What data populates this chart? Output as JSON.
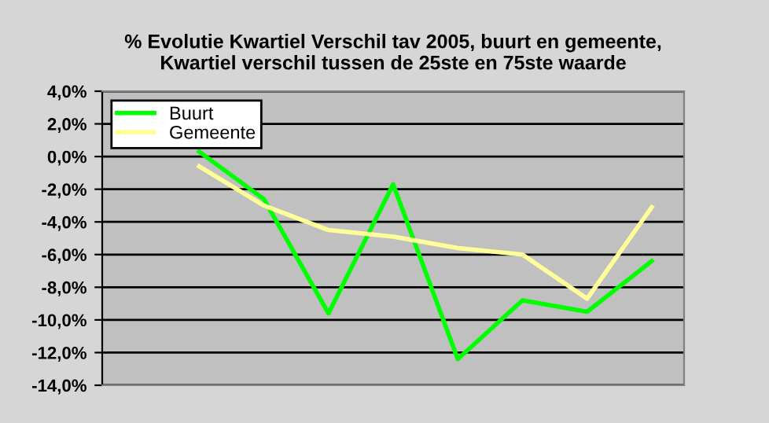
{
  "chart_data": {
    "type": "line",
    "title": "% Evolutie Kwartiel Verschil tav 2005, buurt en gemeente,\nKwartiel verschil tussen de 25ste en 75ste waarde",
    "categories": [
      null,
      null,
      null,
      null,
      null,
      null,
      null,
      null,
      null
    ],
    "series": [
      {
        "name": "Buurt",
        "color": "#00ff00",
        "values": [
          null,
          0.3,
          -2.6,
          -9.6,
          -1.7,
          -12.4,
          -8.8,
          -9.5,
          -6.4
        ]
      },
      {
        "name": "Gemeente",
        "color": "#ffff99",
        "values": [
          null,
          -0.6,
          -3.0,
          -4.5,
          -4.9,
          -5.6,
          -6.0,
          -8.7,
          -3.1
        ]
      }
    ],
    "ylim": [
      -14,
      4
    ],
    "yticks": [
      {
        "value": 4,
        "label": "4,0%"
      },
      {
        "value": 2,
        "label": "2,0%"
      },
      {
        "value": 0,
        "label": "0,0%"
      },
      {
        "value": -2,
        "label": "-2,0%"
      },
      {
        "value": -4,
        "label": "-4,0%"
      },
      {
        "value": -6,
        "label": "-6,0%"
      },
      {
        "value": -8,
        "label": "-8,0%"
      },
      {
        "value": -10,
        "label": "-10,0%"
      },
      {
        "value": -12,
        "label": "-12,0%"
      },
      {
        "value": -14,
        "label": "-14,0%"
      }
    ],
    "grid": "y",
    "legend": "top left",
    "marker": "none",
    "line_style": "solid"
  }
}
